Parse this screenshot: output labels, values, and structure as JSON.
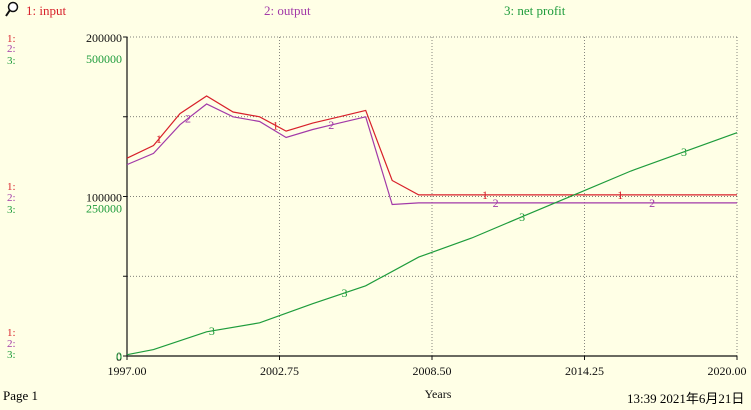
{
  "header": {
    "icon": "pin-icon",
    "legend": [
      {
        "label": "1: input",
        "color": "#d8202a"
      },
      {
        "label": "2: output",
        "color": "#a23aa8"
      },
      {
        "label": "3: net profit",
        "color": "#1e9c3c"
      }
    ]
  },
  "axis_markers": {
    "m1": "1:",
    "m2": "2:",
    "m3": "3:"
  },
  "footer": {
    "page": "Page 1",
    "timestamp": "13:39  2021年6月21日"
  },
  "chart_data": {
    "type": "line",
    "xlabel": "Years",
    "x_ticks": [
      "1997.00",
      "2002.75",
      "2008.50",
      "2014.25",
      "2020.00"
    ],
    "xlim": [
      1997,
      2020
    ],
    "y_axes": [
      {
        "series": "input/output",
        "ticks": [
          "200000",
          "100000",
          "0"
        ],
        "ylim": [
          0,
          200000
        ],
        "color": "#111111"
      },
      {
        "series": "net profit",
        "ticks": [
          "500000",
          "250000",
          "0"
        ],
        "ylim": [
          0,
          500000
        ],
        "color": "#1e9c3c"
      }
    ],
    "series": [
      {
        "name": "input",
        "marker": "1",
        "color": "#d8202a",
        "axis": 0,
        "x": [
          1997,
          1998,
          1999,
          2000,
          2001,
          2002,
          2003,
          2004,
          2005,
          2006,
          2007,
          2008,
          2010,
          2012,
          2014,
          2016,
          2018,
          2020
        ],
        "y": [
          124000,
          132000,
          152000,
          163000,
          153000,
          150000,
          141000,
          146000,
          150000,
          154000,
          110000,
          101000,
          101000,
          101000,
          101000,
          101000,
          101000,
          101000
        ],
        "label_x": [
          1998.2,
          2002.6,
          2010.5,
          2015.6
        ]
      },
      {
        "name": "output",
        "marker": "2",
        "color": "#a23aa8",
        "axis": 0,
        "x": [
          1997,
          1998,
          1999,
          2000,
          2001,
          2002,
          2003,
          2004,
          2005,
          2006,
          2007,
          2008,
          2010,
          2012,
          2014,
          2016,
          2018,
          2020
        ],
        "y": [
          120000,
          127000,
          145000,
          158000,
          150000,
          147000,
          137000,
          142000,
          146000,
          150000,
          95000,
          96000,
          96000,
          96000,
          96000,
          96000,
          96000,
          96000
        ],
        "label_x": [
          1999.3,
          2004.7,
          2010.9,
          2016.8
        ]
      },
      {
        "name": "net profit",
        "marker": "3",
        "color": "#1e9c3c",
        "axis": 1,
        "x": [
          1997,
          1998,
          2000,
          2002,
          2004,
          2006,
          2008,
          2010,
          2012,
          2014,
          2016,
          2018,
          2020
        ],
        "y": [
          2000,
          10000,
          38000,
          52000,
          82000,
          110000,
          155000,
          185000,
          220000,
          255000,
          290000,
          320000,
          350000
        ],
        "label_x": [
          2000.2,
          2005.2,
          2011.9,
          2018.0
        ]
      }
    ]
  }
}
